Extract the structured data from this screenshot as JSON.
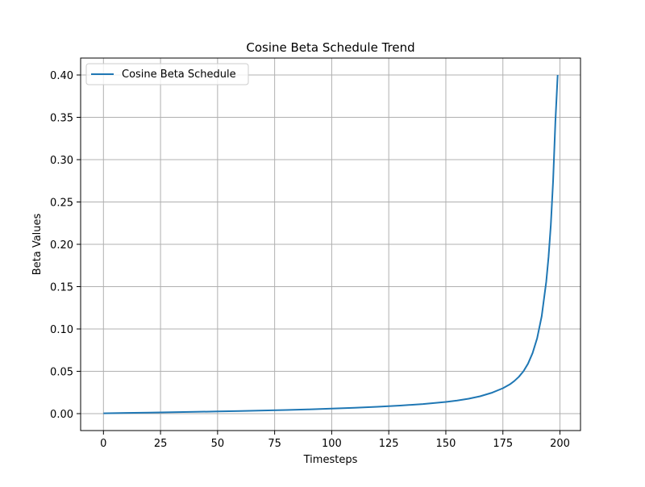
{
  "chart_data": {
    "type": "line",
    "title": "Cosine Beta Schedule Trend",
    "xlabel": "Timesteps",
    "ylabel": "Beta Values",
    "xlim": [
      -10,
      209
    ],
    "ylim": [
      -0.02,
      0.42
    ],
    "xticks": [
      0,
      25,
      50,
      75,
      100,
      125,
      150,
      175,
      200
    ],
    "yticks": [
      0.0,
      0.05,
      0.1,
      0.15,
      0.2,
      0.25,
      0.3,
      0.35,
      0.4
    ],
    "xtick_labels": [
      "0",
      "25",
      "50",
      "75",
      "100",
      "125",
      "150",
      "175",
      "200"
    ],
    "ytick_labels": [
      "0.00",
      "0.05",
      "0.10",
      "0.15",
      "0.20",
      "0.25",
      "0.30",
      "0.35",
      "0.40"
    ],
    "grid": true,
    "legend_position": "top-left",
    "series": [
      {
        "name": "Cosine Beta Schedule",
        "color": "#1f77b4",
        "points": [
          [
            0,
            0.0004
          ],
          [
            10,
            0.0008
          ],
          [
            20,
            0.0012
          ],
          [
            30,
            0.0017
          ],
          [
            40,
            0.0021
          ],
          [
            50,
            0.0026
          ],
          [
            60,
            0.0031
          ],
          [
            70,
            0.0037
          ],
          [
            80,
            0.0043
          ],
          [
            90,
            0.005
          ],
          [
            100,
            0.0059
          ],
          [
            110,
            0.0069
          ],
          [
            120,
            0.0081
          ],
          [
            130,
            0.0095
          ],
          [
            140,
            0.0113
          ],
          [
            150,
            0.0138
          ],
          [
            155,
            0.0155
          ],
          [
            160,
            0.0176
          ],
          [
            165,
            0.0205
          ],
          [
            170,
            0.0245
          ],
          [
            175,
            0.03
          ],
          [
            178,
            0.0345
          ],
          [
            180,
            0.0385
          ],
          [
            182,
            0.0435
          ],
          [
            184,
            0.05
          ],
          [
            186,
            0.059
          ],
          [
            188,
            0.0715
          ],
          [
            190,
            0.089
          ],
          [
            192,
            0.115
          ],
          [
            194,
            0.156
          ],
          [
            195,
            0.185
          ],
          [
            196,
            0.223
          ],
          [
            197,
            0.275
          ],
          [
            198,
            0.345
          ],
          [
            199,
            0.4
          ]
        ]
      }
    ]
  }
}
